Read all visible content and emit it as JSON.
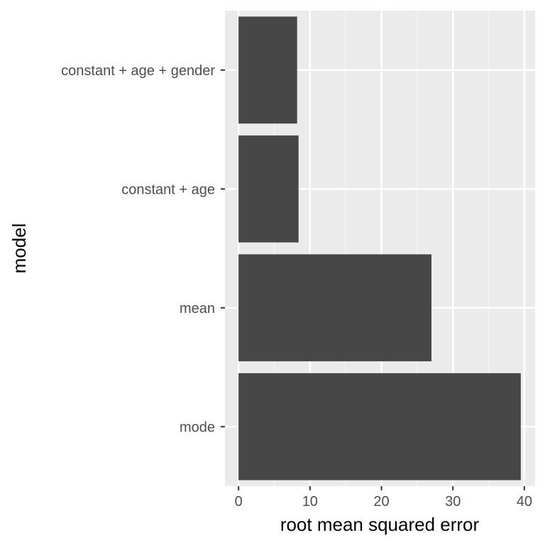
{
  "chart_data": {
    "type": "bar",
    "orientation": "horizontal",
    "categories": [
      "mode",
      "mean",
      "constant + age",
      "constant + age + gender"
    ],
    "values": [
      39.5,
      27.0,
      8.4,
      8.2
    ],
    "xlabel": "root mean squared error",
    "ylabel": "model",
    "xlim": [
      -1.9,
      41.5
    ],
    "xticks": [
      0,
      10,
      20,
      30,
      40
    ],
    "xtick_labels": [
      "0",
      "10",
      "20",
      "30",
      "40"
    ],
    "grid": true,
    "colors": {
      "bar": "#474747",
      "panel": "#ebebeb",
      "grid_major": "#ffffff",
      "grid_minor": "#f5f5f5",
      "tick": "#333333",
      "tick_label": "#4d4d4d"
    }
  }
}
